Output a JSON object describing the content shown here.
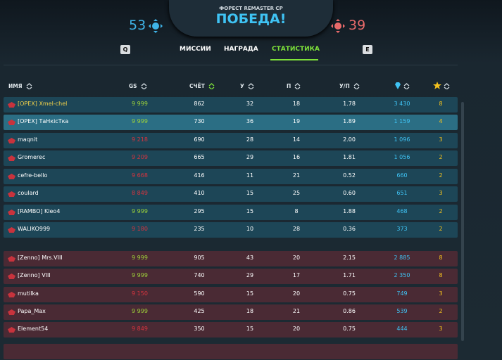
{
  "header": {
    "mode": "ФОРЕСТ REMASTER CP",
    "title": "ПОБЕДА!",
    "score_left": "53",
    "score_right": "39"
  },
  "tabs": {
    "key_left": "Q",
    "key_right": "E",
    "items": [
      "МИССИИ",
      "НАГРАДА",
      "СТАТИСТИКА"
    ],
    "active": 2
  },
  "table": {
    "columns": [
      "ИМЯ",
      "GS",
      "СЧЁТ",
      "У",
      "П",
      "У/П"
    ],
    "sorted_column": 2,
    "selected_row": [
      0,
      1
    ],
    "teams": [
      {
        "color": "#1d4657",
        "rows": [
          {
            "name": "[ОРЕХ] Xmel-chel",
            "name_color": "#f2d24a",
            "gs": "9 999",
            "gs_color": "#9fd43a",
            "score": "862",
            "kills": "32",
            "deaths": "18",
            "kd": "1.78",
            "gems": "3 430",
            "stars": "8"
          },
          {
            "name": "[ОРЕХ] ТаНкісТка",
            "name_color": "#ffffff",
            "gs": "9 999",
            "gs_color": "#9fd43a",
            "score": "730",
            "kills": "36",
            "deaths": "19",
            "kd": "1.89",
            "gems": "1 159",
            "stars": "4"
          },
          {
            "name": "maqnit",
            "name_color": "#ffffff",
            "gs": "9 218",
            "gs_color": "#d8343f",
            "score": "690",
            "kills": "28",
            "deaths": "14",
            "kd": "2.00",
            "gems": "1 096",
            "stars": "3"
          },
          {
            "name": "Gromerec",
            "name_color": "#ffffff",
            "gs": "9 209",
            "gs_color": "#d8343f",
            "score": "665",
            "kills": "29",
            "deaths": "16",
            "kd": "1.81",
            "gems": "1 056",
            "stars": "2"
          },
          {
            "name": "cefre-bello",
            "name_color": "#ffffff",
            "gs": "9 668",
            "gs_color": "#d8343f",
            "score": "416",
            "kills": "11",
            "deaths": "21",
            "kd": "0.52",
            "gems": "660",
            "stars": "2"
          },
          {
            "name": "coulard",
            "name_color": "#ffffff",
            "gs": "8 849",
            "gs_color": "#d8343f",
            "score": "410",
            "kills": "15",
            "deaths": "25",
            "kd": "0.60",
            "gems": "651",
            "stars": "3"
          },
          {
            "name": "[RAMBO] Kleo4",
            "name_color": "#ffffff",
            "gs": "9 999",
            "gs_color": "#9fd43a",
            "score": "295",
            "kills": "15",
            "deaths": "8",
            "kd": "1.88",
            "gems": "468",
            "stars": "2"
          },
          {
            "name": "WALIKO999",
            "name_color": "#ffffff",
            "gs": "9 180",
            "gs_color": "#d8343f",
            "score": "235",
            "kills": "10",
            "deaths": "28",
            "kd": "0.36",
            "gems": "373",
            "stars": "2"
          }
        ]
      },
      {
        "color": "#4a2a34",
        "rows": [
          {
            "name": "[Zenno] Mrs.VIII",
            "name_color": "#ffffff",
            "gs": "9 999",
            "gs_color": "#9fd43a",
            "score": "905",
            "kills": "43",
            "deaths": "20",
            "kd": "2.15",
            "gems": "2 885",
            "stars": "8"
          },
          {
            "name": "[Zenno] VIII",
            "name_color": "#ffffff",
            "gs": "9 999",
            "gs_color": "#9fd43a",
            "score": "740",
            "kills": "29",
            "deaths": "17",
            "kd": "1.71",
            "gems": "2 350",
            "stars": "8"
          },
          {
            "name": "mutilka",
            "name_color": "#ffffff",
            "gs": "9 150",
            "gs_color": "#d8343f",
            "score": "590",
            "kills": "15",
            "deaths": "20",
            "kd": "0.75",
            "gems": "749",
            "stars": "3"
          },
          {
            "name": "Papa_Max",
            "name_color": "#ffffff",
            "gs": "9 999",
            "gs_color": "#9fd43a",
            "score": "425",
            "kills": "18",
            "deaths": "21",
            "kd": "0.86",
            "gems": "539",
            "stars": "2"
          },
          {
            "name": "Element54",
            "name_color": "#ffffff",
            "gs": "9 849",
            "gs_color": "#d8343f",
            "score": "350",
            "kills": "15",
            "deaths": "20",
            "kd": "0.75",
            "gems": "444",
            "stars": "3"
          }
        ]
      }
    ]
  }
}
